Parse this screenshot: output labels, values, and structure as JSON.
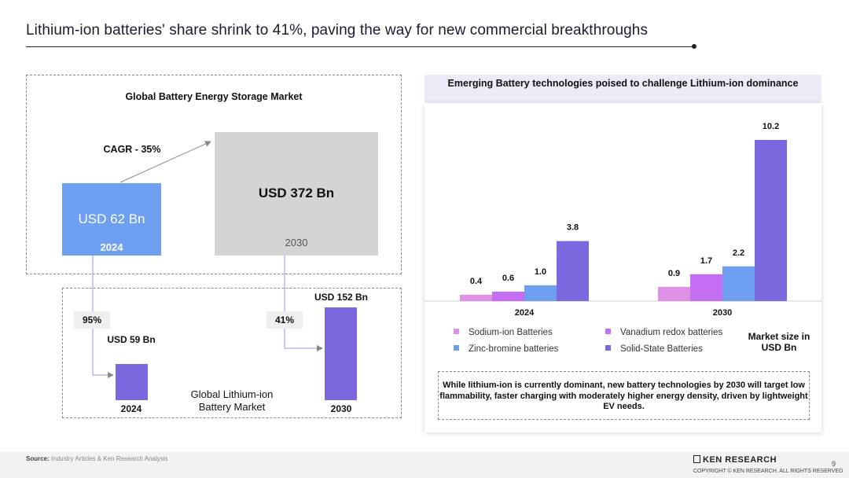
{
  "slide": {
    "title": "Lithium-ion batteries' share shrink to 41%, paving the way for new commercial breakthroughs",
    "page_number": "9"
  },
  "left_panel": {
    "market_title": "Global Battery Energy Storage Market",
    "cagr_label": "CAGR - 35%",
    "box_2024_value": "USD 62 Bn",
    "box_2024_year": "2024",
    "box_2030_value": "USD 372 Bn",
    "box_2030_year": "2030",
    "share_2024": "95%",
    "share_2030": "41%",
    "li_title": "Global Lithium-ion Battery Market",
    "li_2024_value": "USD 59 Bn",
    "li_2030_value": "USD 152 Bn",
    "li_2024_year": "2024",
    "li_2030_year": "2030",
    "li_values_bn": [
      59,
      152
    ],
    "li_color": "#7b68de"
  },
  "chart_data": {
    "type": "bar",
    "title": "Emerging Battery technologies poised to challenge Lithium-ion dominance",
    "categories": [
      "2024",
      "2030"
    ],
    "series": [
      {
        "name": "Sodium-ion Batteries",
        "color": "#de8fe6",
        "values": [
          0.4,
          0.9
        ]
      },
      {
        "name": "Vanadium redox batteries",
        "color": "#c36df2",
        "values": [
          0.6,
          1.7
        ]
      },
      {
        "name": "Zinc-bromine batteries",
        "color": "#6e9ff0",
        "values": [
          1.0,
          2.2
        ]
      },
      {
        "name": "Solid-State Batteries",
        "color": "#7b68de",
        "values": [
          3.8,
          10.2
        ]
      }
    ],
    "value_labels": [
      [
        "0.4",
        "0.9"
      ],
      [
        "0.6",
        "1.7"
      ],
      [
        "1.0",
        "2.2"
      ],
      [
        "3.8",
        "10.2"
      ]
    ],
    "ylabel": "Market size in USD Bn",
    "ylim": [
      0,
      10.2
    ],
    "legend_order": [
      0,
      1,
      2,
      3
    ]
  },
  "note": "While lithium-ion is currently dominant, new battery technologies by 2030 will target low flammability, faster charging with moderately higher energy density, driven by lightweight EV needs.",
  "footer": {
    "source_label": "Source:",
    "source_text": "Industry Articles & Ken Research Analysis",
    "brand": "KEN RESEARCH",
    "copyright": "COPYRIGHT © KEN RESEARCH. ALL RIGHTS RESERVED"
  }
}
